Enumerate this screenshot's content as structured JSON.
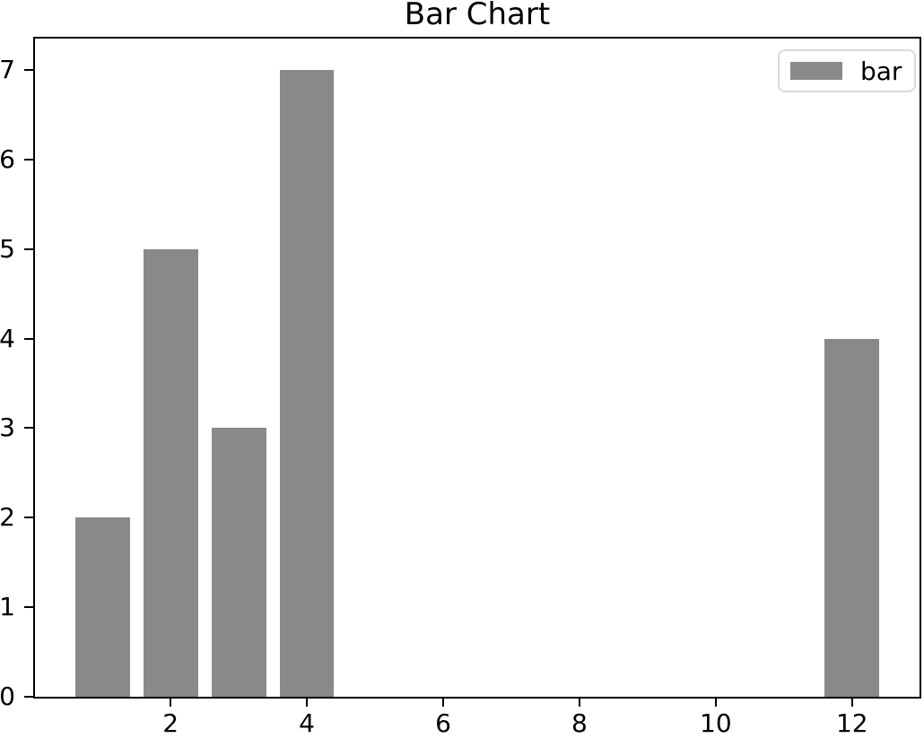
{
  "figure": {
    "background": "#ffffff"
  },
  "chart_data": {
    "type": "bar",
    "title": "Bar Chart",
    "x": [
      1,
      2,
      3,
      4,
      12
    ],
    "values": [
      2,
      5,
      3,
      7,
      4
    ],
    "bar_width": 0.8,
    "bar_color": "#898989",
    "xlabel": "",
    "ylabel": "",
    "xticks": [
      2,
      4,
      6,
      8,
      10,
      12
    ],
    "yticks": [
      0,
      1,
      2,
      3,
      4,
      5,
      6,
      7
    ],
    "xlim": [
      0.01,
      12.99
    ],
    "ylim": [
      0,
      7.35
    ],
    "grid": false,
    "spine_color": "#000000",
    "legend_edge_color": "#d9d9d9",
    "legend": {
      "location": "upper right",
      "entries": [
        {
          "label": "bar",
          "color": "#898989"
        }
      ]
    }
  }
}
